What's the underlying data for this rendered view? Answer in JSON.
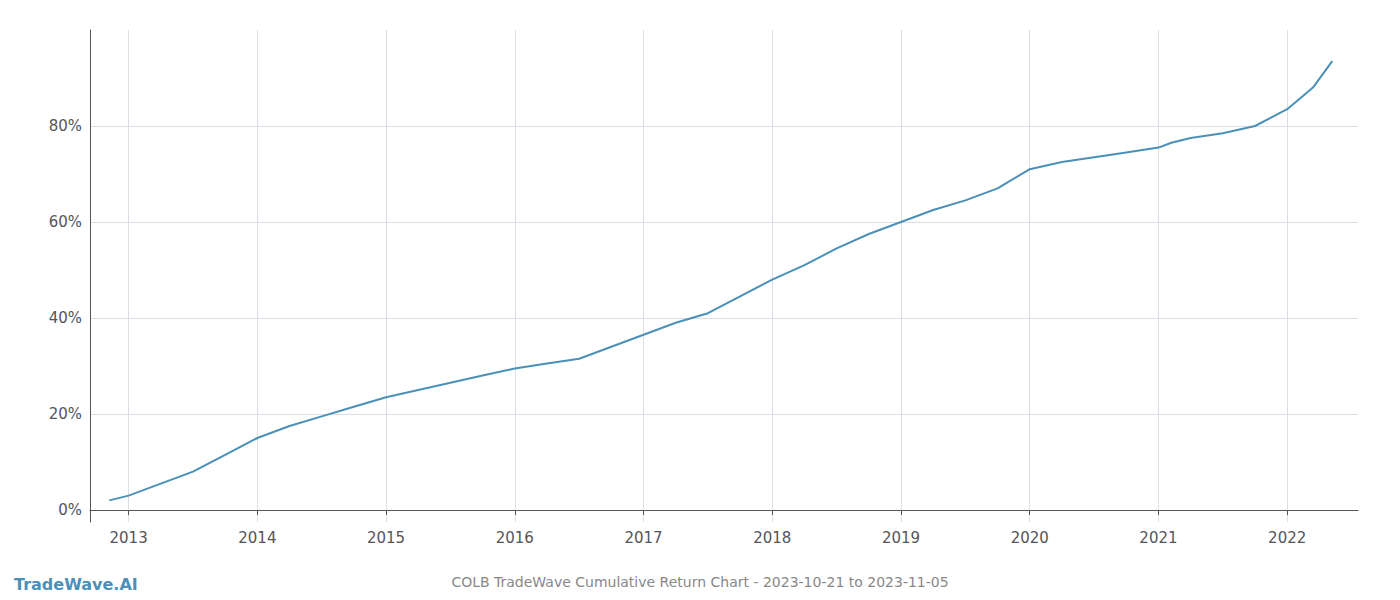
{
  "chart_data": {
    "type": "line",
    "title": "COLB TradeWave Cumulative Return Chart - 2023-10-21 to 2023-11-05",
    "annotations": [
      "TradeWave.AI"
    ],
    "color": "#4a90b8",
    "x": [
      2012.85,
      2013.0,
      2013.25,
      2013.5,
      2013.75,
      2014.0,
      2014.25,
      2014.5,
      2014.75,
      2015.0,
      2015.25,
      2015.5,
      2015.75,
      2016.0,
      2016.25,
      2016.5,
      2016.75,
      2017.0,
      2017.25,
      2017.5,
      2017.75,
      2018.0,
      2018.25,
      2018.5,
      2018.75,
      2019.0,
      2019.25,
      2019.5,
      2019.75,
      2020.0,
      2020.25,
      2020.5,
      2020.75,
      2021.0,
      2021.1,
      2021.25,
      2021.5,
      2021.75,
      2022.0,
      2022.2,
      2022.35
    ],
    "values": [
      0.02,
      0.03,
      0.055,
      0.08,
      0.115,
      0.15,
      0.175,
      0.195,
      0.215,
      0.235,
      0.25,
      0.265,
      0.28,
      0.295,
      0.305,
      0.315,
      0.34,
      0.365,
      0.39,
      0.41,
      0.445,
      0.48,
      0.51,
      0.545,
      0.575,
      0.6,
      0.625,
      0.645,
      0.67,
      0.71,
      0.725,
      0.735,
      0.745,
      0.755,
      0.765,
      0.775,
      0.785,
      0.8,
      0.835,
      0.88,
      0.935
    ],
    "xlim": [
      2012.7,
      2022.55
    ],
    "xticks": [
      2013,
      2014,
      2015,
      2016,
      2017,
      2018,
      2019,
      2020,
      2021,
      2022
    ],
    "ylim": [
      -0.025,
      1.0
    ],
    "yticks": [
      {
        "value": 0.0,
        "label": "0%"
      },
      {
        "value": 0.2,
        "label": "20%"
      },
      {
        "value": 0.4,
        "label": "40%"
      },
      {
        "value": 0.6,
        "label": "60%"
      },
      {
        "value": 0.8,
        "label": "80%"
      }
    ],
    "grid": true
  }
}
